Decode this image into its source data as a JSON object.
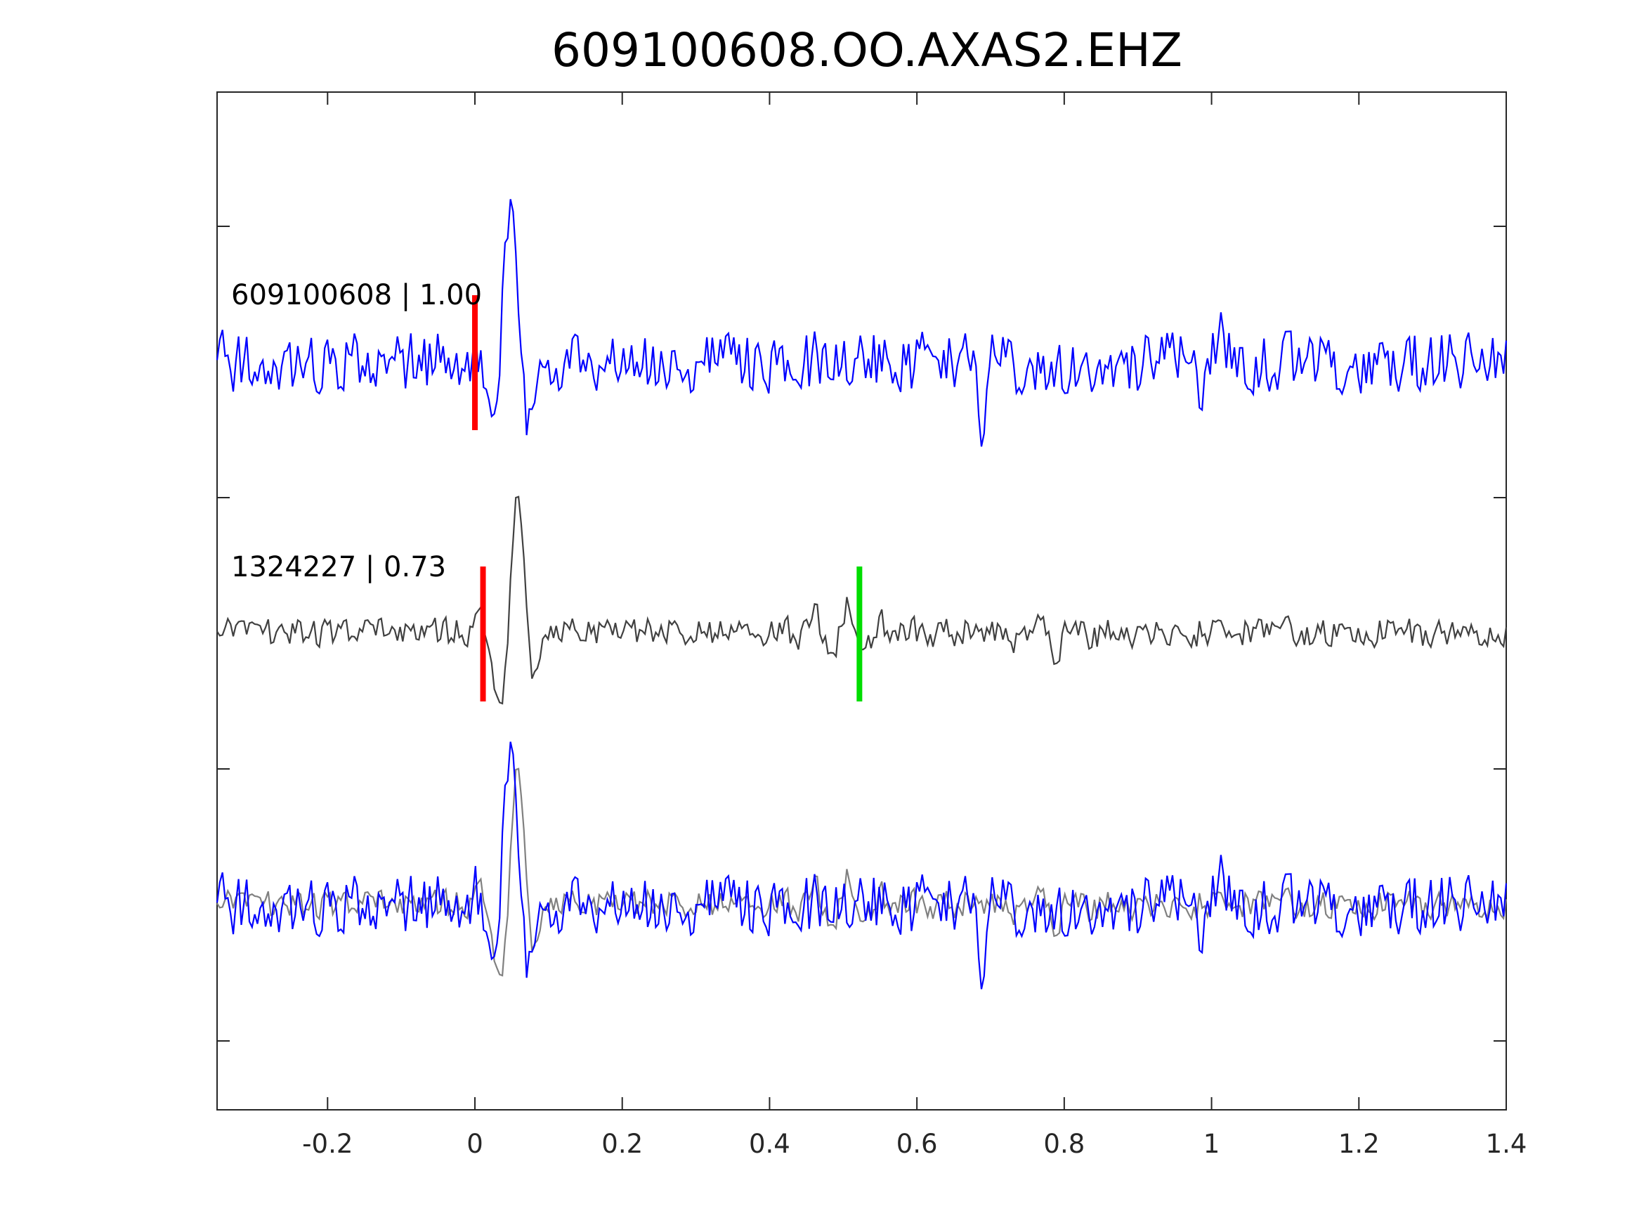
{
  "chart_data": {
    "type": "line",
    "title": "609100608.OO.AXAS2.EHZ",
    "xlabel": "",
    "ylabel": "",
    "xlim": [
      -0.35,
      1.4
    ],
    "x_ticks": [
      {
        "value": -0.2,
        "label": "-0.2"
      },
      {
        "value": 0,
        "label": "0"
      },
      {
        "value": 0.2,
        "label": "0.2"
      },
      {
        "value": 0.4,
        "label": "0.4"
      },
      {
        "value": 0.6,
        "label": "0.6"
      },
      {
        "value": 0.8,
        "label": "0.8"
      },
      {
        "value": 1,
        "label": "1"
      },
      {
        "value": 1.2,
        "label": "1.2"
      },
      {
        "value": 1.4,
        "label": "1.4"
      }
    ],
    "grid": false,
    "traces": [
      {
        "label": "609100608 | 1.00",
        "color": "#0000ff"
      },
      {
        "label": "1324227 | 0.73",
        "color": "#404040"
      },
      {
        "label": "",
        "color": "#0000ff",
        "overlay_color": "#808080"
      }
    ],
    "picks": [
      {
        "trace": 0,
        "time": 0.0,
        "color": "#ff0000"
      },
      {
        "trace": 1,
        "time": 0.011,
        "color": "#ff0000"
      },
      {
        "trace": 1,
        "time": 0.522,
        "color": "#00dd00"
      }
    ]
  }
}
